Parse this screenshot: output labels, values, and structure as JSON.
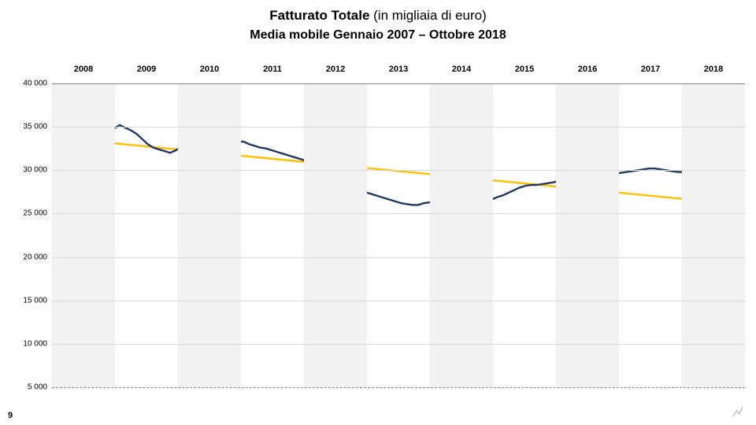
{
  "title": {
    "bold": "Fatturato Totale",
    "rest": " (in migliaia di euro)"
  },
  "subtitle": "Media mobile Gennaio 2007 – Ottobre 2018",
  "page_number": "9",
  "chart": {
    "type": "line",
    "background_color": "#ffffff",
    "year_labels": [
      "2008",
      "2009",
      "2010",
      "2011",
      "2012",
      "2013",
      "2014",
      "2015",
      "2016",
      "2017",
      "2018"
    ],
    "alt_band_color": "#f2f2f2",
    "y": {
      "min": 5000,
      "max": 40000,
      "step": 5000,
      "labels": [
        "40 000",
        "35 000",
        "30 000",
        "25 000",
        "20 000",
        "15 000",
        "10 000",
        "5 000"
      ],
      "grid_color_major": "#808080",
      "grid_color_minor": "#d9d9d9",
      "dashed_index": 7
    },
    "series_main": {
      "color": "#1f3864",
      "width": 2.4,
      "values": [
        34200,
        34400,
        34100,
        34600,
        34300,
        34900,
        34600,
        34900,
        35100,
        35000,
        34700,
        34800,
        35200,
        34900,
        34600,
        34200,
        33600,
        33000,
        32600,
        32400,
        32200,
        32000,
        32300,
        32700,
        32900,
        33200,
        33700,
        34000,
        34100,
        34100,
        33800,
        33600,
        33400,
        33300,
        33300,
        33000,
        32800,
        32600,
        32500,
        32300,
        32100,
        31900,
        31700,
        31500,
        31300,
        31100,
        31000,
        30700,
        30300,
        29800,
        29400,
        29000,
        28500,
        28100,
        27900,
        27600,
        27400,
        27200,
        27000,
        26800,
        26600,
        26400,
        26200,
        26100,
        26000,
        26000,
        26200,
        26300,
        26500,
        26500,
        26400,
        26300,
        26200,
        26100,
        26000,
        26100,
        26200,
        26400,
        26600,
        26900,
        27100,
        27400,
        27700,
        28000,
        28200,
        28300,
        28300,
        28400,
        28500,
        28600,
        28800,
        29000,
        29200,
        29400,
        29600,
        29800,
        29900,
        29900,
        29800,
        29700,
        29600,
        29700,
        29800,
        29900,
        30000,
        30100,
        30200,
        30200,
        30100,
        30000,
        29900,
        29800,
        29800,
        29900,
        30000,
        30100,
        30200,
        30200,
        30100,
        30000,
        30000,
        30000,
        30000,
        30100
      ]
    },
    "series_trend": {
      "color": "#ffc000",
      "width": 2.4,
      "start_value": 33800,
      "end_value": 26000
    }
  }
}
